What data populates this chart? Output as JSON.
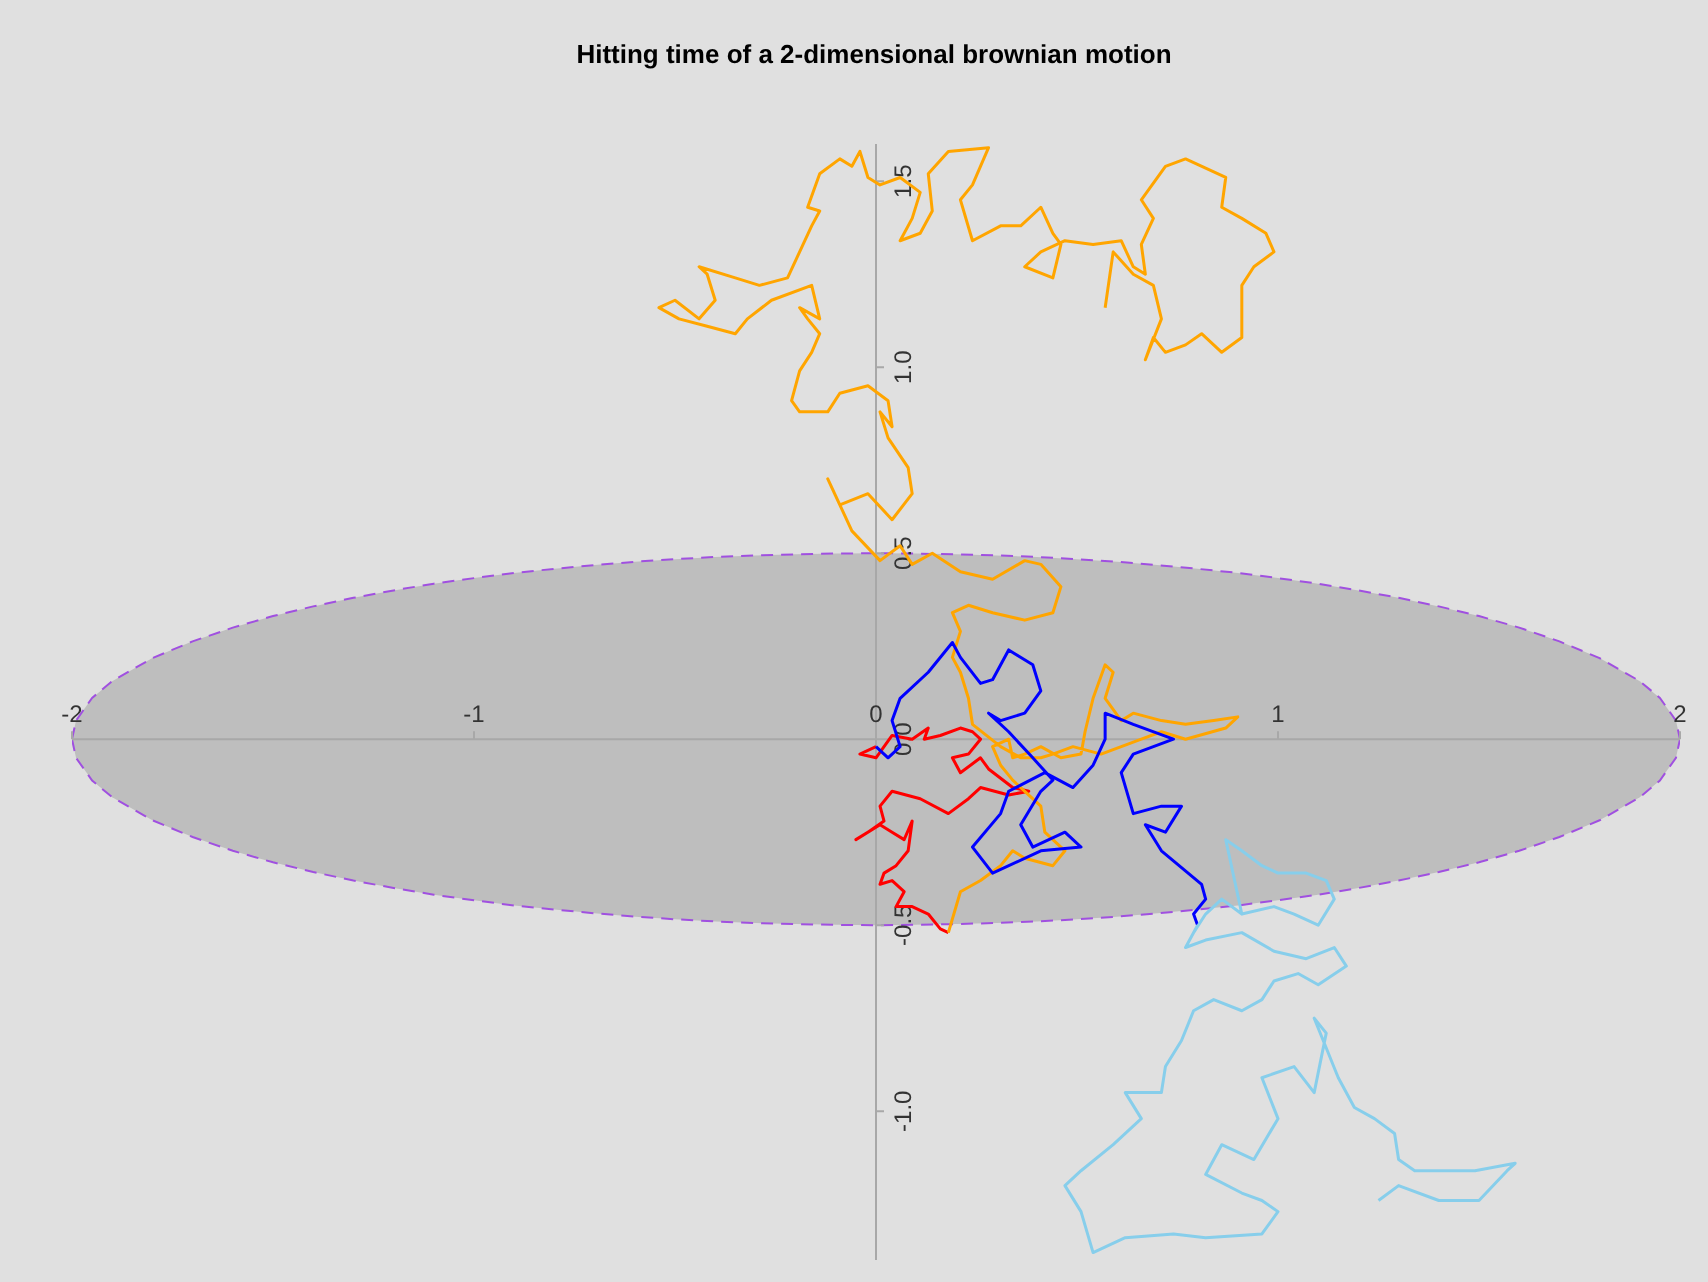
{
  "chart_data": {
    "type": "line",
    "title": "Hitting time of a 2-dimensional brownian motion",
    "marker": "none",
    "line_style": "solid",
    "grid": false,
    "legend": false,
    "xlim": [
      -2,
      2
    ],
    "ylim": [
      -1.4,
      1.6
    ],
    "xticks": [
      -2,
      -1,
      0,
      1,
      2
    ],
    "yticks": [
      {
        "value": -1,
        "label": "-1.0"
      },
      -0.5,
      {
        "value": 0,
        "label": "0.0"
      },
      0.5,
      {
        "value": 1,
        "label": "1.0"
      },
      1.5
    ],
    "series": [
      {
        "type": "area",
        "color": "#bebebe",
        "line_style": "dashed",
        "x": [
          -2,
          -1.99,
          -1.95,
          -1.9,
          -1.8,
          -1.7,
          -1.6,
          -1.5,
          -1.4,
          -1.3,
          -1.2,
          -1.1,
          -1,
          -0.9,
          -0.8,
          -0.7,
          -0.6,
          -0.5,
          -0.4,
          -0.3,
          -0.2,
          -0.1,
          0,
          0.1,
          0.2,
          0.3,
          0.4,
          0.5,
          0.6,
          0.7,
          0.8,
          0.9,
          1,
          1.1,
          1.2,
          1.3,
          1.4,
          1.5,
          1.6,
          1.7,
          1.8,
          1.9,
          1.95,
          1.99,
          2
        ],
        "values": [
          0,
          0.05,
          0.111,
          0.156,
          0.218,
          0.263,
          0.3,
          0.331,
          0.357,
          0.38,
          0.4,
          0.418,
          0.433,
          0.447,
          0.458,
          0.468,
          0.477,
          0.484,
          0.49,
          0.494,
          0.497,
          0.499,
          0.5,
          0.499,
          0.497,
          0.494,
          0.49,
          0.484,
          0.477,
          0.468,
          0.458,
          0.447,
          0.433,
          0.418,
          0.4,
          0.38,
          0.357,
          0.331,
          0.3,
          0.263,
          0.218,
          0.156,
          0.111,
          0.05,
          0
        ]
      },
      {
        "type": "area",
        "color": "#bebebe",
        "line_style": "dashed",
        "x": [
          -2,
          -1.99,
          -1.95,
          -1.9,
          -1.8,
          -1.7,
          -1.6,
          -1.5,
          -1.4,
          -1.3,
          -1.2,
          -1.1,
          -1,
          -0.9,
          -0.8,
          -0.7,
          -0.6,
          -0.5,
          -0.4,
          -0.3,
          -0.2,
          -0.1,
          0,
          0.1,
          0.2,
          0.3,
          0.4,
          0.5,
          0.6,
          0.7,
          0.8,
          0.9,
          1,
          1.1,
          1.2,
          1.3,
          1.4,
          1.5,
          1.6,
          1.7,
          1.8,
          1.9,
          1.95,
          1.99,
          2
        ],
        "values": [
          0,
          -0.05,
          -0.111,
          -0.156,
          -0.218,
          -0.263,
          -0.3,
          -0.331,
          -0.357,
          -0.38,
          -0.4,
          -0.418,
          -0.433,
          -0.447,
          -0.458,
          -0.468,
          -0.477,
          -0.484,
          -0.49,
          -0.494,
          -0.497,
          -0.499,
          -0.5,
          -0.499,
          -0.497,
          -0.494,
          -0.49,
          -0.484,
          -0.477,
          -0.468,
          -0.458,
          -0.447,
          -0.433,
          -0.418,
          -0.4,
          -0.38,
          -0.357,
          -0.331,
          -0.3,
          -0.263,
          -0.218,
          -0.156,
          -0.111,
          -0.05,
          0
        ]
      },
      {
        "color": "#ff0000",
        "x": [
          0,
          -0.04,
          0,
          0.04,
          0.09,
          0.13,
          0.12,
          0.16,
          0.21,
          0.24,
          0.26,
          0.23,
          0.19,
          0.21,
          0.26,
          0.28,
          0.34,
          0.38,
          0.33,
          0.26,
          0.23,
          0.18,
          0.11,
          0.04,
          0.01,
          0.02,
          -0.02,
          -0.05,
          0.01,
          0.04,
          0.07,
          0.09,
          0.08,
          0.05,
          0.02,
          0.01,
          0.04,
          0.07,
          0.05,
          0.09,
          0.13,
          0.16,
          0.18
        ],
        "values": [
          -0.02,
          -0.04,
          -0.05,
          0.01,
          0,
          0.03,
          0,
          0.01,
          0.03,
          0.02,
          0,
          -0.04,
          -0.05,
          -0.09,
          -0.05,
          -0.08,
          -0.13,
          -0.14,
          -0.15,
          -0.13,
          -0.16,
          -0.2,
          -0.16,
          -0.14,
          -0.18,
          -0.22,
          -0.25,
          -0.27,
          -0.23,
          -0.25,
          -0.27,
          -0.22,
          -0.3,
          -0.34,
          -0.36,
          -0.39,
          -0.38,
          -0.41,
          -0.45,
          -0.45,
          -0.47,
          -0.51,
          -0.52
        ]
      },
      {
        "color": "#ffa500",
        "x": [
          0.18,
          0.21,
          0.26,
          0.31,
          0.34,
          0.37,
          0.44,
          0.47,
          0.42,
          0.41,
          0.37,
          0.34,
          0.31,
          0.29,
          0.33,
          0.34,
          0.37,
          0.41,
          0.46,
          0.51,
          0.52,
          0.54,
          0.57,
          0.59,
          0.57,
          0.61,
          0.64,
          0.71,
          0.77,
          0.84,
          0.9,
          0.87,
          0.77,
          0.71,
          0.66,
          0.61,
          0.56,
          0.49,
          0.44,
          0.41,
          0.36,
          0.31,
          0.24,
          0.23,
          0.21,
          0.19,
          0.21,
          0.19,
          0.23,
          0.29,
          0.37,
          0.44,
          0.46,
          0.41,
          0.37,
          0.29,
          0.21,
          0.14,
          0.09,
          0.06,
          0.01,
          -0.06,
          -0.12,
          -0.09,
          -0.02,
          0.04,
          0.09,
          0.08,
          0.03,
          0.01,
          0.04,
          0.03,
          -0.02,
          -0.09,
          -0.12,
          -0.19,
          -0.21,
          -0.19,
          -0.16,
          -0.14,
          -0.17,
          -0.19,
          -0.14,
          -0.16,
          -0.26,
          -0.32,
          -0.35,
          -0.42,
          -0.49,
          -0.54,
          -0.5,
          -0.44,
          -0.4,
          -0.42,
          -0.44,
          -0.35,
          -0.29,
          -0.22,
          -0.19,
          -0.16,
          -0.14,
          -0.17,
          -0.14,
          -0.09,
          -0.06,
          -0.04,
          -0.02,
          0.01,
          0.06,
          0.11,
          0.09,
          0.06,
          0.11,
          0.14,
          0.13,
          0.18,
          0.28,
          0.24,
          0.21,
          0.24,
          0.31,
          0.36,
          0.41,
          0.44,
          0.46,
          0.44,
          0.37,
          0.41,
          0.47,
          0.54,
          0.61,
          0.64,
          0.67,
          0.66,
          0.69,
          0.66,
          0.72,
          0.77,
          0.87,
          0.86,
          0.91,
          0.97,
          0.99,
          0.94,
          0.91,
          0.91,
          0.86,
          0.81,
          0.77,
          0.72,
          0.69,
          0.67,
          0.71,
          0.69,
          0.64,
          0.59,
          0.57
        ],
        "values": [
          -0.52,
          -0.41,
          -0.38,
          -0.34,
          -0.3,
          -0.32,
          -0.34,
          -0.3,
          -0.25,
          -0.18,
          -0.14,
          -0.11,
          -0.07,
          -0.02,
          0,
          -0.05,
          -0.04,
          -0.02,
          -0.05,
          -0.04,
          0.02,
          0.11,
          0.2,
          0.18,
          0.11,
          0.05,
          0.07,
          0.05,
          0.04,
          0.05,
          0.06,
          0.03,
          0,
          0.02,
          0,
          -0.02,
          -0.04,
          -0.02,
          -0.04,
          -0.05,
          -0.05,
          -0.02,
          0.04,
          0.11,
          0.18,
          0.22,
          0.29,
          0.34,
          0.36,
          0.34,
          0.32,
          0.34,
          0.41,
          0.47,
          0.48,
          0.43,
          0.45,
          0.5,
          0.47,
          0.52,
          0.48,
          0.56,
          0.7,
          0.63,
          0.66,
          0.59,
          0.66,
          0.73,
          0.81,
          0.88,
          0.84,
          0.91,
          0.95,
          0.93,
          0.88,
          0.88,
          0.91,
          0.99,
          1.04,
          1.09,
          1.13,
          1.16,
          1.13,
          1.22,
          1.18,
          1.13,
          1.09,
          1.11,
          1.13,
          1.16,
          1.18,
          1.13,
          1.18,
          1.25,
          1.27,
          1.24,
          1.22,
          1.24,
          1.31,
          1.38,
          1.42,
          1.43,
          1.52,
          1.56,
          1.54,
          1.58,
          1.51,
          1.49,
          1.51,
          1.47,
          1.4,
          1.34,
          1.36,
          1.42,
          1.52,
          1.58,
          1.59,
          1.49,
          1.45,
          1.34,
          1.38,
          1.38,
          1.43,
          1.36,
          1.33,
          1.24,
          1.27,
          1.31,
          1.34,
          1.33,
          1.34,
          1.27,
          1.25,
          1.33,
          1.4,
          1.45,
          1.54,
          1.56,
          1.51,
          1.43,
          1.4,
          1.36,
          1.31,
          1.27,
          1.22,
          1.08,
          1.04,
          1.09,
          1.06,
          1.04,
          1.08,
          1.02,
          1.13,
          1.22,
          1.25,
          1.31,
          1.16
        ]
      },
      {
        "color": "#0000ff",
        "x": [
          0,
          0.03,
          0.06,
          0.04,
          0.06,
          0.13,
          0.19,
          0.21,
          0.26,
          0.29,
          0.33,
          0.39,
          0.41,
          0.37,
          0.31,
          0.28,
          0.33,
          0.39,
          0.44,
          0.41,
          0.36,
          0.39,
          0.47,
          0.51,
          0.41,
          0.29,
          0.24,
          0.31,
          0.33,
          0.42,
          0.49,
          0.54,
          0.57,
          0.57,
          0.64,
          0.74,
          0.64,
          0.61,
          0.64,
          0.71,
          0.76,
          0.72,
          0.67,
          0.71,
          0.81,
          0.82,
          0.79,
          0.8
        ],
        "values": [
          -0.02,
          -0.05,
          -0.02,
          0.05,
          0.11,
          0.18,
          0.26,
          0.22,
          0.15,
          0.16,
          0.24,
          0.2,
          0.13,
          0.07,
          0.05,
          0.07,
          0.02,
          -0.05,
          -0.11,
          -0.14,
          -0.23,
          -0.29,
          -0.25,
          -0.29,
          -0.3,
          -0.36,
          -0.29,
          -0.2,
          -0.14,
          -0.09,
          -0.13,
          -0.07,
          0,
          0.07,
          0.04,
          0,
          -0.04,
          -0.09,
          -0.2,
          -0.18,
          -0.18,
          -0.25,
          -0.23,
          -0.3,
          -0.39,
          -0.43,
          -0.47,
          -0.5
        ]
      },
      {
        "color": "#87ceeb",
        "x": [
          0.8,
          0.77,
          0.79,
          0.82,
          0.86,
          0.91,
          0.87,
          0.91,
          0.96,
          1,
          1.07,
          1.12,
          1.14,
          1.1,
          1.04,
          0.99,
          0.91,
          0.86,
          0.82,
          0.79,
          0.77,
          0.82,
          0.91,
          0.99,
          1.07,
          1.14,
          1.17,
          1.1,
          1.05,
          0.99,
          0.96,
          0.91,
          0.84,
          0.79,
          0.76,
          0.72,
          0.71,
          0.62,
          0.66,
          0.59,
          0.51,
          0.47,
          0.51,
          0.54,
          0.62,
          0.74,
          0.82,
          0.96,
          1,
          0.96,
          0.91,
          0.82,
          0.86,
          0.94,
          1,
          0.96,
          1.04,
          1.09,
          1.12,
          1.09,
          1.15,
          1.19,
          1.24,
          1.29,
          1.3,
          1.34,
          1.4,
          1.49,
          1.59,
          1.57,
          1.5,
          1.4,
          1.3,
          1.25
        ],
        "values": [
          -0.5,
          -0.56,
          -0.52,
          -0.47,
          -0.43,
          -0.47,
          -0.27,
          -0.3,
          -0.34,
          -0.36,
          -0.36,
          -0.38,
          -0.43,
          -0.5,
          -0.47,
          -0.45,
          -0.47,
          -0.43,
          -0.47,
          -0.52,
          -0.56,
          -0.54,
          -0.52,
          -0.57,
          -0.59,
          -0.56,
          -0.61,
          -0.66,
          -0.63,
          -0.65,
          -0.7,
          -0.73,
          -0.7,
          -0.73,
          -0.81,
          -0.88,
          -0.95,
          -0.95,
          -1.02,
          -1.09,
          -1.16,
          -1.2,
          -1.27,
          -1.38,
          -1.34,
          -1.33,
          -1.34,
          -1.33,
          -1.27,
          -1.24,
          -1.22,
          -1.17,
          -1.09,
          -1.13,
          -1.02,
          -0.91,
          -0.88,
          -0.95,
          -0.79,
          -0.75,
          -0.91,
          -0.99,
          -1.02,
          -1.06,
          -1.13,
          -1.16,
          -1.16,
          -1.16,
          -1.14,
          -1.16,
          -1.24,
          -1.24,
          -1.2,
          -1.24
        ]
      }
    ]
  }
}
